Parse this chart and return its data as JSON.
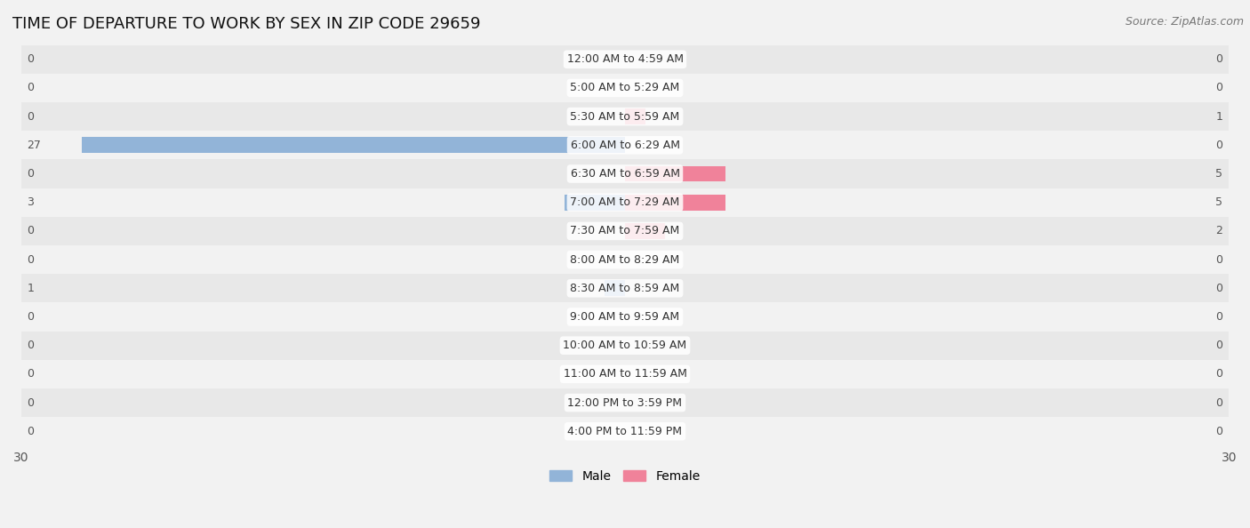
{
  "title": "TIME OF DEPARTURE TO WORK BY SEX IN ZIP CODE 29659",
  "source": "Source: ZipAtlas.com",
  "categories": [
    "12:00 AM to 4:59 AM",
    "5:00 AM to 5:29 AM",
    "5:30 AM to 5:59 AM",
    "6:00 AM to 6:29 AM",
    "6:30 AM to 6:59 AM",
    "7:00 AM to 7:29 AM",
    "7:30 AM to 7:59 AM",
    "8:00 AM to 8:29 AM",
    "8:30 AM to 8:59 AM",
    "9:00 AM to 9:59 AM",
    "10:00 AM to 10:59 AM",
    "11:00 AM to 11:59 AM",
    "12:00 PM to 3:59 PM",
    "4:00 PM to 11:59 PM"
  ],
  "male_values": [
    0,
    0,
    0,
    27,
    0,
    3,
    0,
    0,
    1,
    0,
    0,
    0,
    0,
    0
  ],
  "female_values": [
    0,
    0,
    1,
    0,
    5,
    5,
    2,
    0,
    0,
    0,
    0,
    0,
    0,
    0
  ],
  "male_color": "#92b4d8",
  "female_color": "#f0829a",
  "xlim": 30,
  "bg_color": "#f2f2f2",
  "row_even_color": "#e8e8e8",
  "row_odd_color": "#f2f2f2",
  "title_fontsize": 13,
  "source_fontsize": 9,
  "label_fontsize": 9,
  "tick_fontsize": 10,
  "legend_fontsize": 10
}
